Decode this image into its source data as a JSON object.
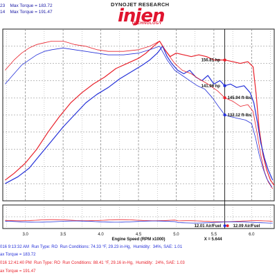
{
  "legend_top": {
    "line1": "23    Max Torque = 183.72",
    "line2": "14    Max Torque = 191.47"
  },
  "logo": {
    "top_text": "DYNOJET RESEARCH",
    "brand": "injen",
    "sub": "TECHNOLOGY"
  },
  "colors": {
    "red": "#e8202a",
    "blue": "#2430d8",
    "grid": "#7a7a7a",
    "frame": "#1a1a1a"
  },
  "chart_data": {
    "type": "line",
    "xlabel": "Engine Speed (RPM x1000)",
    "x_readout": "X = 5.644",
    "xlim": [
      2.7,
      6.3
    ],
    "ylim": [
      0,
      100
    ],
    "x_ticks": [
      "3.0",
      "3.5",
      "4.0",
      "4.5",
      "5.0",
      "5.5",
      "6.0"
    ],
    "annotations": [
      {
        "text": "156.81 hp",
        "x": 5.644,
        "y": 82,
        "color": "#e8202a"
      },
      {
        "text": "141.96 hp",
        "x": 5.644,
        "y": 67,
        "color": "#2430d8"
      },
      {
        "text": "145.94 ft-lbs",
        "x": 5.644,
        "y": 60,
        "color": "#e8202a"
      },
      {
        "text": "132.12 ft-lbs",
        "x": 5.644,
        "y": 50,
        "color": "#2430d8"
      }
    ],
    "series": [
      {
        "color": "#e8202a",
        "style": "solid",
        "values": [
          [
            2.73,
            12
          ],
          [
            2.85,
            16
          ],
          [
            3.0,
            22
          ],
          [
            3.15,
            30
          ],
          [
            3.3,
            40
          ],
          [
            3.45,
            49
          ],
          [
            3.6,
            57
          ],
          [
            3.75,
            63
          ],
          [
            3.9,
            68
          ],
          [
            4.05,
            72
          ],
          [
            4.2,
            77
          ],
          [
            4.35,
            80
          ],
          [
            4.5,
            83
          ],
          [
            4.6,
            86
          ],
          [
            4.7,
            90
          ],
          [
            4.78,
            93
          ],
          [
            4.85,
            88
          ],
          [
            4.92,
            84
          ],
          [
            5.0,
            86
          ],
          [
            5.1,
            85
          ],
          [
            5.2,
            84
          ],
          [
            5.3,
            85
          ],
          [
            5.4,
            84
          ],
          [
            5.5,
            82
          ],
          [
            5.644,
            82
          ],
          [
            5.75,
            81
          ],
          [
            5.85,
            80
          ],
          [
            5.95,
            81
          ],
          [
            6.02,
            78
          ],
          [
            6.06,
            62
          ],
          [
            6.1,
            42
          ],
          [
            6.15,
            27
          ],
          [
            6.2,
            18
          ],
          [
            6.25,
            12
          ],
          [
            6.3,
            9
          ]
        ]
      },
      {
        "color": "#2430d8",
        "style": "solid",
        "values": [
          [
            2.73,
            10
          ],
          [
            2.9,
            14
          ],
          [
            3.05,
            19
          ],
          [
            3.2,
            27
          ],
          [
            3.35,
            35
          ],
          [
            3.5,
            43
          ],
          [
            3.65,
            50
          ],
          [
            3.8,
            57
          ],
          [
            3.95,
            62
          ],
          [
            4.1,
            66
          ],
          [
            4.25,
            71
          ],
          [
            4.4,
            75
          ],
          [
            4.55,
            79
          ],
          [
            4.65,
            82
          ],
          [
            4.75,
            86
          ],
          [
            4.82,
            90
          ],
          [
            4.88,
            84
          ],
          [
            4.94,
            80
          ],
          [
            5.02,
            76
          ],
          [
            5.1,
            74
          ],
          [
            5.18,
            76
          ],
          [
            5.26,
            72
          ],
          [
            5.34,
            70
          ],
          [
            5.42,
            73
          ],
          [
            5.5,
            68
          ],
          [
            5.58,
            70
          ],
          [
            5.644,
            67
          ],
          [
            5.72,
            68
          ],
          [
            5.8,
            66
          ],
          [
            5.9,
            67
          ],
          [
            5.98,
            63
          ],
          [
            6.03,
            57
          ],
          [
            6.08,
            45
          ],
          [
            6.12,
            34
          ],
          [
            6.17,
            25
          ],
          [
            6.22,
            18
          ],
          [
            6.28,
            12
          ]
        ]
      },
      {
        "color": "#e8202a",
        "style": "thin",
        "values": [
          [
            2.73,
            76
          ],
          [
            2.85,
            82
          ],
          [
            2.95,
            86
          ],
          [
            3.05,
            89
          ],
          [
            3.15,
            91
          ],
          [
            3.25,
            92
          ],
          [
            3.35,
            93
          ],
          [
            3.5,
            93
          ],
          [
            3.65,
            91
          ],
          [
            3.8,
            90
          ],
          [
            3.95,
            88
          ],
          [
            4.1,
            87
          ],
          [
            4.3,
            87
          ],
          [
            4.5,
            88
          ],
          [
            4.65,
            90
          ],
          [
            4.78,
            93
          ],
          [
            4.88,
            86
          ],
          [
            4.98,
            80
          ],
          [
            5.08,
            76
          ],
          [
            5.2,
            74
          ],
          [
            5.3,
            71
          ],
          [
            5.42,
            68
          ],
          [
            5.55,
            64
          ],
          [
            5.644,
            60
          ],
          [
            5.75,
            58
          ],
          [
            5.85,
            55
          ],
          [
            5.95,
            56
          ],
          [
            6.02,
            52
          ],
          [
            6.07,
            40
          ],
          [
            6.12,
            27
          ],
          [
            6.17,
            17
          ],
          [
            6.22,
            11
          ],
          [
            6.28,
            7
          ]
        ]
      },
      {
        "color": "#2430d8",
        "style": "thin",
        "values": [
          [
            2.73,
            68
          ],
          [
            2.85,
            74
          ],
          [
            2.95,
            79
          ],
          [
            3.05,
            82
          ],
          [
            3.15,
            85
          ],
          [
            3.25,
            87
          ],
          [
            3.35,
            88
          ],
          [
            3.5,
            89
          ],
          [
            3.65,
            88
          ],
          [
            3.8,
            87
          ],
          [
            3.95,
            86
          ],
          [
            4.1,
            85
          ],
          [
            4.3,
            85
          ],
          [
            4.5,
            86
          ],
          [
            4.65,
            88
          ],
          [
            4.78,
            90
          ],
          [
            4.88,
            82
          ],
          [
            4.98,
            76
          ],
          [
            5.08,
            73
          ],
          [
            5.18,
            70
          ],
          [
            5.28,
            67
          ],
          [
            5.38,
            65
          ],
          [
            5.48,
            60
          ],
          [
            5.56,
            55
          ],
          [
            5.644,
            50
          ],
          [
            5.72,
            49
          ],
          [
            5.82,
            48
          ],
          [
            5.92,
            47
          ],
          [
            6.0,
            45
          ],
          [
            6.05,
            37
          ],
          [
            6.1,
            27
          ],
          [
            6.15,
            19
          ],
          [
            6.2,
            13
          ],
          [
            6.27,
            8
          ]
        ]
      }
    ],
    "af_annotations": [
      {
        "text": "12.01 Air/Fuel",
        "color": "#2430d8"
      },
      {
        "text": "12.09 Air/Fuel",
        "color": "#e8202a"
      }
    ]
  },
  "bottom": {
    "run1": "016 9:13:32 AM  Run Type: RO  Run Conditions: 74.33 °F, 29.23 in-Hg,  Humidity:  34%, SAE: 1.01",
    "run1_torque": "ax Torque = 183.72",
    "run2": "016 12:41:40 PM  Run Type: RO  Run Conditions: 88.41 °F, 29.16 in-Hg,  Humidity:  24%, SAE: 1.03",
    "run2_torque": "ax Torque = 191.47"
  }
}
